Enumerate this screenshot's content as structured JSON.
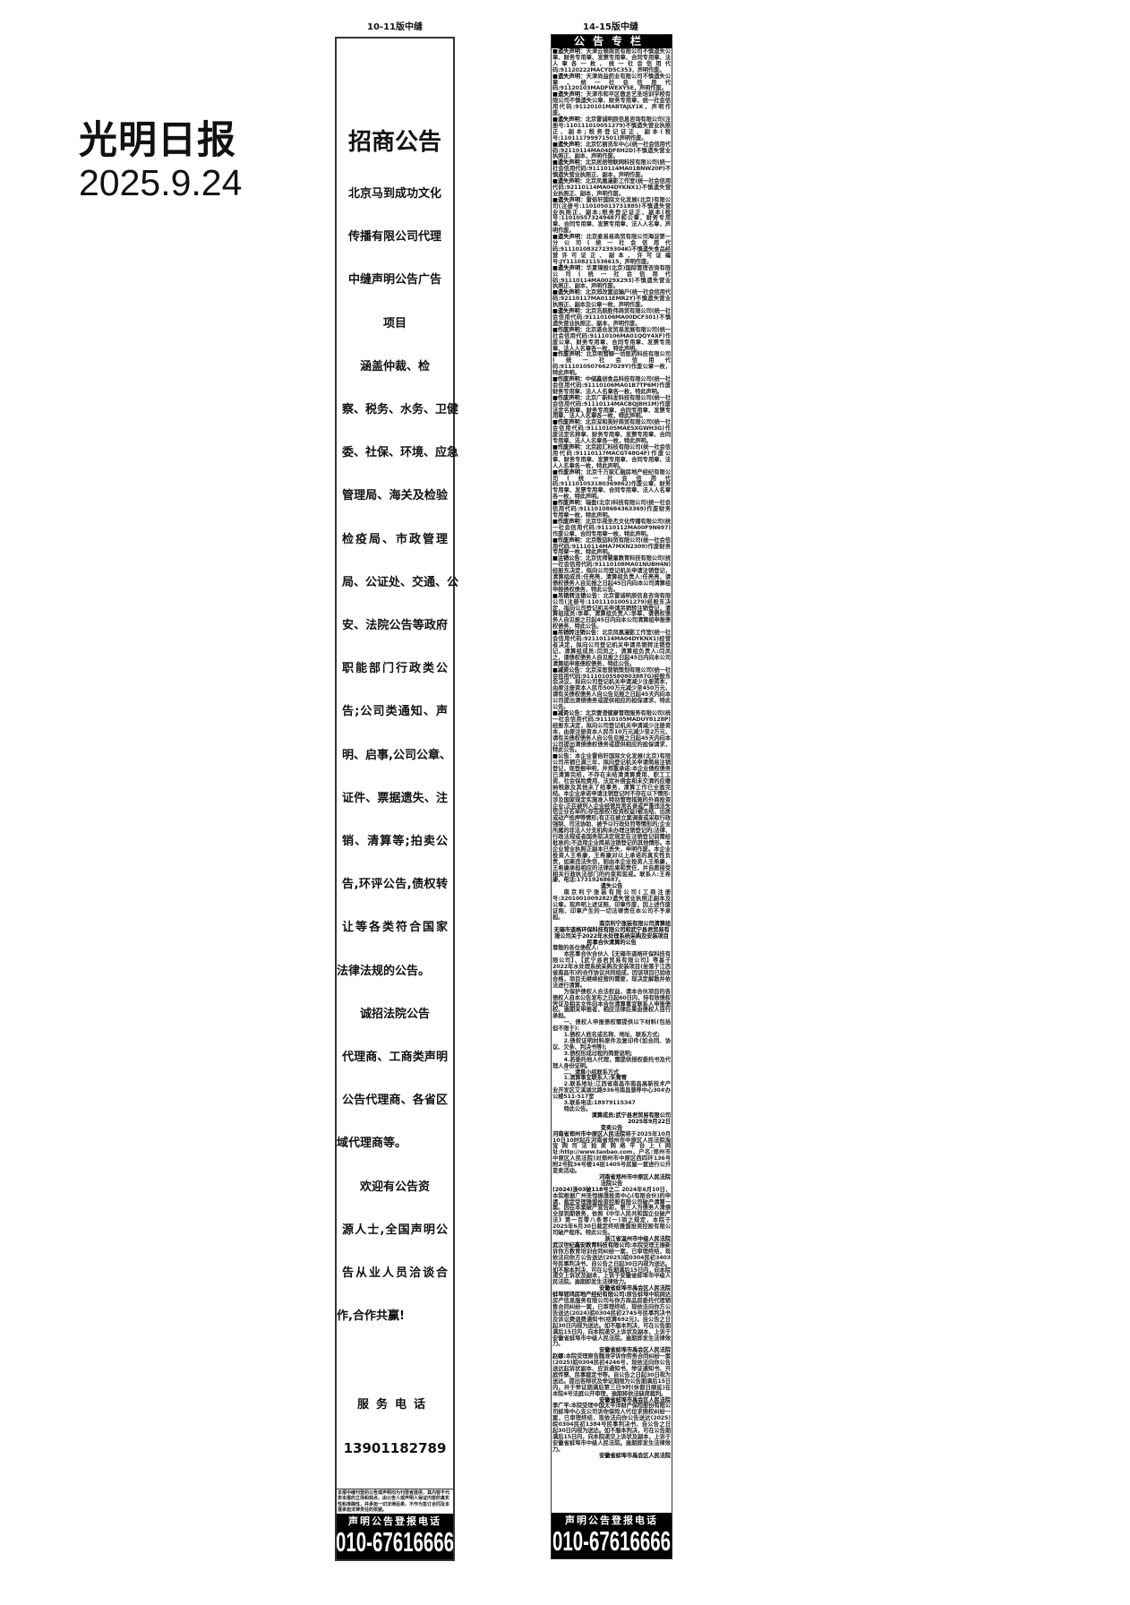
{
  "masthead": {
    "paper_name": "光明日报",
    "date": "2025.9.24"
  },
  "left_column": {
    "label": "10-11版中缝",
    "title": "招商公告",
    "lines": [
      {
        "text": "北京马到成功文化",
        "style": "center"
      },
      {
        "text": "传播有限公司代理",
        "style": "center"
      },
      {
        "text": "中缝声明公告广告",
        "style": "center"
      },
      {
        "text": "项目",
        "style": "center"
      },
      {
        "text": "涵盖仲裁、检",
        "style": "indent"
      },
      {
        "text": "察、税务、水务、卫健",
        "style": "just"
      },
      {
        "text": "委、社保、环境、应急",
        "style": "just"
      },
      {
        "text": "管理局、海关及检验",
        "style": "just"
      },
      {
        "text": "检疫局、市政管理",
        "style": "just"
      },
      {
        "text": "局、公证处、交通、公",
        "style": "just"
      },
      {
        "text": "安、法院公告等政府",
        "style": "just"
      },
      {
        "text": "职能部门行政类公",
        "style": "just"
      },
      {
        "text": "告;公司类通知、声",
        "style": "just"
      },
      {
        "text": "明、启事,公司公章、",
        "style": "just"
      },
      {
        "text": "证件、票据遗失、注",
        "style": "just"
      },
      {
        "text": "销、清算等;拍卖公",
        "style": "just"
      },
      {
        "text": "告,环评公告,债权转",
        "style": "just"
      },
      {
        "text": "让等各类符合国家",
        "style": "just"
      },
      {
        "text": "法律法规的公告。",
        "style": "left"
      },
      {
        "text": "诚招法院公告",
        "style": "indent"
      },
      {
        "text": "代理商、工商类声明",
        "style": "just"
      },
      {
        "text": "公告代理商、各省区",
        "style": "just"
      },
      {
        "text": "域代理商等。",
        "style": "left"
      },
      {
        "text": "欢迎有公告资",
        "style": "indent"
      },
      {
        "text": "源人士,全国声明公",
        "style": "just"
      },
      {
        "text": "告从业人员洽谈合",
        "style": "just"
      },
      {
        "text": "作,合作共赢!",
        "style": "left"
      }
    ],
    "service_label": "服务电话",
    "service_phone": "13901182789",
    "disclaimer": "本报中缝刊登的公告或声明均为刊登者提供，其内容不代表本报的立场和观点，由公告人或声明人保证内容的真实性和准确性，并承担一切法律后果，不作为签订合同及本报承担法律责任的依据。",
    "footer_label": "声明公告登报电话",
    "footer_phone": "010-67616666"
  },
  "right_column": {
    "label": "14-15版中缝",
    "title": "公告专栏",
    "notices": [
      {
        "lead": "■遗失声明：",
        "text": "天津云顿商贸有限公司不慎遗失公章、财务专用章、发票专用章、合同专用章、法人章各一枚，统一社会信用代码:91120222MACYD5C353，声明作废。"
      },
      {
        "lead": "■遗失声明：",
        "text": "天津尚益药业有限公司不慎遗失公章，统一社会信用代码:91120103MADFWEXY5E，声明作废。"
      },
      {
        "lead": "■遗失声明：",
        "text": "天津市和平区傲丞艺圣培训学校有限公司不慎遗失公章、财务专用章，统一社会信用代码:91120101MABTAJLY1K，声明作废。"
      },
      {
        "lead": "■遗失声明：",
        "text": "北京雷诚明辰信息咨询有限公司(注册号:110111010051279)不慎遗失营业执照正、副本;税务登记证正、副本(税号:110111799971501)声明作废。"
      },
      {
        "lead": "■遗失声明：",
        "text": "北京忆丽洗车中心(统一社会信用代码:92110114MA04DF8H2D)不慎遗失营业执照正、副本，声明作废。"
      },
      {
        "lead": "■遗失声明：",
        "text": "北京居居物联网科技有限公司(统一社会信用代码:91110114MA01BNW20P)不慎遗失营业执照正、副本，声明作废。"
      },
      {
        "lead": "■遗失声明：",
        "text": "北京凤凰漫影工作室(统一社会信用代码:92110114MA04DYKNX1)不慎遗失营业执照正、副本，声明作废。"
      },
      {
        "lead": "■遗失声明：",
        "text": "雷俗轩国际文化发展(北京)有限公司(注册号:110105013731885)不慎遗失营业执照正、副本;税务登记证正、副本(税号:110105573249487)和公章、财务专用章、合同专用章、发票专用章、法人人名章，声明作废。"
      },
      {
        "lead": "■遗失声明：",
        "text": "北京麦易易商贸有限公司海淀第一分公司(统一社会信用代码:91110108327239304K)不慎遗失食品经营许可证正、副本，许可证编号:JY11108211536615，声明作废。"
      },
      {
        "lead": "■遗失声明：",
        "text": "华夏锦投(北京)国际管理咨询有限公司(统一社会信用代码:91110114MA0029X293)不慎遗失营业执照正、副本，声明作废。"
      },
      {
        "lead": "■遗失声明：",
        "text": "北京郑改富运输户(统一社会信用代码:92110117MA011EMR2Y)不慎遗失营业执照正、副本及公章一枚，声明作废。"
      },
      {
        "lead": "■遗失声明：",
        "text": "北京浩辰胜伟商贸有限公司(统一社会信用代码:91110106MA00DCF301)不慎遗失营业执照正、副本，声明作废。"
      },
      {
        "lead": "■作废声明：",
        "text": "北京道合发贸易发展有限公司(统一社会信用代码:91110106MA01QQY4XF)作废公章、财务专用章、合同专用章、发票专用章、法人人名章各一枚，特此声明。"
      },
      {
        "lead": "■作废声明：",
        "text": "北京明管聊一坊医药科技有限公司(统一社会信用代码:91110105076627029Y)作废公章一枚，特此声明。"
      },
      {
        "lead": "■作废声明：",
        "text": "中储鑫创食品科技有限公司(统一社会信用代码:91110106MA01B7TP6M)作废财务专用章、法人人名章各一枚，特此声明。"
      },
      {
        "lead": "■作废声明：",
        "text": "北京广新科发科技有限公司(统一社会信用代码:91110114MACBQJBH1M)作废法定名称章、财务专用章、合同专用章、发票专用章、法人人名章各一枚，特此声明。"
      },
      {
        "lead": "■作废声明：",
        "text": "北京深和美好商贸有限公司(统一社会信用代码:91110105MAE5XGWH3G)作废法定名称章、财务专用章、发票专用章、合同专用章、法人人名章各一枚，特此声明。"
      },
      {
        "lead": "■作废声明：",
        "text": "北京超汇科技有限公司(统一社会信用代码:91110117MACGT48G4F)作废公章、财务专用章、发票专用章、合同专用章、法人人名章各一枚，特此声明。"
      },
      {
        "lead": "■作废声明：",
        "text": "北京千万家汇融房地产经纪有限公司(统一社会信用代码:911101053180369862)作废公章、财务专用章、发票专用章、合同专用章、法人人名章各一枚，特此声明。"
      },
      {
        "lead": "■作废声明：",
        "text": "瑞盈(北京)科技有限公司(统一社会信用代码:91110108684363369)作废财务专用章一枚，特此声明。"
      },
      {
        "lead": "■作废声明：",
        "text": "北京华视圣杰文化传播有限公司(统一社会信用代码:91110112MA00F9N697)作废公章、合同专用章一枚，特此声明。"
      },
      {
        "lead": "■作废声明：",
        "text": "北京敬喆科贸有限公司(统一社会信用代码:91110114MA7MXN2309)作废财务专用章一枚，特此声明。"
      },
      {
        "lead": "■注销公告：",
        "text": "北京优师慧童教育科技有限公司(统一社会信用代码:91110108MA01NUBH4N)经股东决定，拟向公司登记机关申请注销登记，清算组成员:任亮亮，清算组负责人:任亮亮，请债权债务人自见报之日起45日内向本公司清算组申报债权债务，特此公告。"
      },
      {
        "lead": "■吊销转注销公告：",
        "text": "北京雷诚明辰信息咨询有限公司(注册号:110111010051279)经股东决定，拟向公司登记机关申请吊销转注销登记，清算组成员:李皋，清算组负责人:李皋，请债权债务人自见报之日起45日内向本公司清算组申报债权债务，特此公告。"
      },
      {
        "lead": "■吊销转注销公告：",
        "text": "北京凤凰漫影工作室(统一社会信用代码:92110114MA04DYKNX1)经营者决定，拟向公司登记机关申请吊销转注销登记，清算组成员:闫凤之，清算组负责人:闫凤之，请债权债务人自见报之日起45日内向本公司清算组申报债权债务，特此公告。"
      },
      {
        "lead": "■减资公告：",
        "text": "北京深思营销策划有限公司(统一社会信用代码:91110105580803887G)经股东会决议，拟向公司登记机关申请减少注册资本，由原注册资本人民币500万元减少至450万元，请有关债权债务人自公告见报之日起45天内向本公司提出清偿债务或提供相应的担保请求，特此公告。"
      },
      {
        "lead": "■减资公告：",
        "text": "北京壹澄健康管理服务有限公司(统一社会信用代码:91110105MADUY8128P)经股东决定，拟向公司登记机关申请减少注册资本，由原注册资本人民币10万元减少至2万元，请有关债权债务人自公告见报之日起45天内向本公司提出清偿债权债务或提供相应的担保请求，特此公告。"
      },
      {
        "lead": "■公告：",
        "text": "本企业雷俗轩国际文化发展(北京)有限公司吊销已满三年，拟向登记机关申请简易注销登记，现登报申明，并郑重承诺:本企业债权债务已清算完结，不存在未结清清算费用、职工工资、社会保险费用、法定补偿金和未交清的应缴纳税款及其他未了结事务，清算工作已全面完结。本企业承诺申请注销登记时不存在以下情形:涉及国家规定实施准入特别管理措施的外商投资企业;正在被列入企业经营异常名录或严重违法失信企业名单的;存在股权(投资权益)被冻结、出质或动产抵押等情形;有正在被立案调查或采取行政强制、司法协助、被予以行政处罚等情形的;企业所属的非法人分支机构未办理注销登记的;法律、行政法规或者国务院决定规定在注销登记前需经批准的;不适用企业简易注销登记的其他情形。本企业营业执照正副本已丢失，申明作废。本企业投资人王希康，王希康对以上承诺的真实性负责，如果违法失信，则由本企业投资人王希康，王希康承担相应的法律后果和责任，并自愿接受相关行政执法部门的约束和惩戒。联系人:王希康，电话:17319268687。"
      },
      {
        "style": "ctr",
        "text": "遗失公告"
      },
      {
        "style": "ind",
        "text": "南京利宁涨装有限公司(工商注册号:3201001009282)遗失营业执照正副本及公章。现声明上述证照、印章作废，因上述作废证照、印章产生的一切法律责任本公司不予承担。"
      },
      {
        "style": "rt",
        "text": "南京利宁涨装有限公司清算组"
      },
      {
        "style": "ctr",
        "text": "无锡市道格环保科技有限公司和武宁县君贸易有限公司关于2022年水处理系统采购及安装项目民事合伙清算的公告"
      },
      {
        "text": "尊敬的各位债权人:"
      },
      {
        "style": "ind",
        "text": "本民事合伙合伙人【无锡市道格环保科技有限公司】、【武宁县君贸易有限公司】等基于2022年水处理系统采购及安装项目(坐落于江西省南昌市)的合作协议共同组成，因该项目已验收合格，项目无继续经营的需要，现决定解散并依法进行清算。"
      },
      {
        "style": "ind",
        "text": "为保护债权人合法权益，请本合伙项目的各债权人自本公告发布之日起60日内，持有效债权凭证及相关文件向本合伙清算事宜联系人申报债权。逾期未申报者，相应法律后果由债权人自行承担。"
      },
      {
        "style": "ind",
        "text": "一、债权人申报债权需提供以下材料(包括但不限于):"
      },
      {
        "style": "ind",
        "text": "1.债权人姓名或名称、地址、联系方式;"
      },
      {
        "style": "ind",
        "text": "2.债权证明材料原件及复印件(如合同、协议、欠条、判决书等);"
      },
      {
        "style": "ind",
        "text": "3.债权形成过程的简要说明;"
      },
      {
        "style": "ind",
        "text": "4.若委托他人代理，需提供授权委托书及代理人身份证明。"
      },
      {
        "style": "ind",
        "text": "二、清算小组联系方式"
      },
      {
        "style": "ind",
        "text": "1.清算事宜联系人:朱菁菁"
      },
      {
        "style": "ind",
        "text": "2.联系地址:江西省南昌市南昌高新技术产业开发区艾溪湖北路936号南昌景呼中心30#办公楼511-517室"
      },
      {
        "style": "ind",
        "text": "3.联系电话:18979115347"
      },
      {
        "style": "ind",
        "text": "特此公告。"
      },
      {
        "style": "rt",
        "text": "清算成员:武宁县君贸易有限公司"
      },
      {
        "style": "rt",
        "text": "2025年9月22日"
      },
      {
        "style": "ctr",
        "text": "变卖公告"
      },
      {
        "lead": "河南省郑州市中原区人民法院",
        "text": "将于2025年10月10日10时起在河南省郑州市中原区人民法院淘宝网司法拍卖网络平台上(网址:http://www.taobao.com，户名:郑州市中原区人民法院)对郑州市中原区西四环136号附2号院34号楼14层1405号房屋一套进行公开变卖活动。"
      },
      {
        "style": "rt",
        "text": "河南省郑州市中原区人民法院"
      },
      {
        "style": "ctr",
        "text": "法院公告"
      },
      {
        "lead": "(2024)浙03破118号之二",
        "text": " 2024年6月10日，本院根据广州圣恒振晟投资中心(有限合伙)的申请，裁定受理雅盟投资控股有限公司破产清算一案。因在本案破产宣告前，第三人为债务人清偿全部到期债务，依照《中华人民共和国企业破产法》第一百零八条第(一)项之规定，本院于2025年6月30日裁定终结雅盟投资控股有限公司破产程序。特此公告。"
      },
      {
        "style": "rt",
        "text": "浙江省温州市中级人民法院"
      },
      {
        "lead": "武汉世纪鑫安教育科技有限公司:",
        "text": "本院受理王振新诉你方教育培训合同纠纷一案，已审理终结，现依法向你方公告送达(2025)皖0304民初3403号民事判决书，自公告之日起30日内视为送达。如不服本判决，可在公告期满后15日内，向本院递交上诉状及副本，上诉于安徽省蚌埠市中级人民法院。逾期即发生法律效力。"
      },
      {
        "style": "rt",
        "text": "安徽省蚌埠市禹会区人民法院"
      },
      {
        "lead": "蚌埠韧鸿房地产经纪有限公司:",
        "text": "原告蚌埠中皖阔达房产信息服务有限公司与你方商品房委托代理销售合同纠纷一案，已审理终结，现依法向你方公告送达(2024)皖0304民初2745号民事判决书及诉讼费退费通知书(结算692元)。自公告之日起30日内视为送达。如不服本判决，可在公告期满后15日内，向本院递交上诉状及副本，上诉于安徽省蚌埠市中级人民法院。逾期即发生法律效力。"
      },
      {
        "style": "rt",
        "text": "安徽省蚌埠市禹会区人民法院"
      },
      {
        "lead": "赵娜:",
        "text": "本院受理原告魏淮学诉你劳务合同纠纷一案(2025)皖0304民初4246号，现依法向你公告送达起诉状副本、应诉通知书、举证通知书、开庭传票、民事裁定书等。自公告之日起30日视为送达。提出答辩状及举证期限为公告期满后15日内，并于举证期满后第三日9时(休假日顺延)在本院4号法庭公开审理，逾期将依法缺席裁判。"
      },
      {
        "style": "rt",
        "text": "安徽省蚌埠市禹会区人民法院"
      },
      {
        "lead": "李广平:",
        "text": "本院受理中国太平洋财产保险股份有限公司蚌埠中心支公司诉你保险人代位求偿权纠纷一案，已审理终结，现依法向你公告送达(2025)皖0304民初1384号民事判决书，自公告之日起30日内视为送达。如不服本判决，可在公告期满后15日内，向本院递交上诉状及副本，上诉于安徽省蚌埠市中级人民法院。逾期即发生法律效力。"
      },
      {
        "style": "rt",
        "text": "安徽省蚌埠市禹会区人民法院"
      }
    ],
    "footer_label": "声明公告登报电话",
    "footer_phone": "010-67616666"
  }
}
